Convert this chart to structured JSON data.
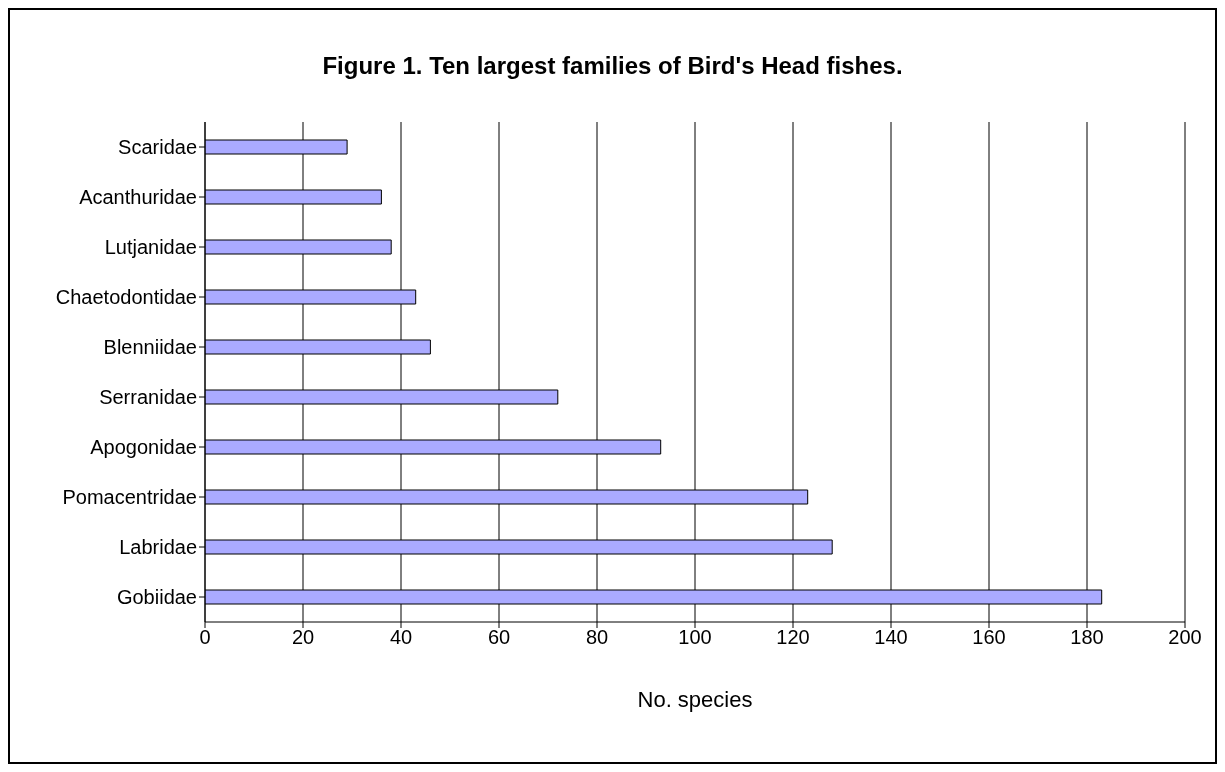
{
  "chart_data": {
    "type": "bar",
    "orientation": "horizontal",
    "title": "Figure 1. Ten largest families of Bird's Head fishes.",
    "xlabel": "No. species",
    "categories": [
      "Scaridae",
      "Acanthuridae",
      "Lutjanidae",
      "Chaetodontidae",
      "Blenniidae",
      "Serranidae",
      "Apogonidae",
      "Pomacentridae",
      "Labridae",
      "Gobiidae"
    ],
    "values": [
      29,
      36,
      38,
      43,
      46,
      72,
      93,
      123,
      128,
      183
    ],
    "color": "#aaaaff",
    "xlim": [
      0,
      200
    ],
    "xticks": [
      0,
      20,
      40,
      60,
      80,
      100,
      120,
      140,
      160,
      180,
      200
    ],
    "grid": "x"
  }
}
